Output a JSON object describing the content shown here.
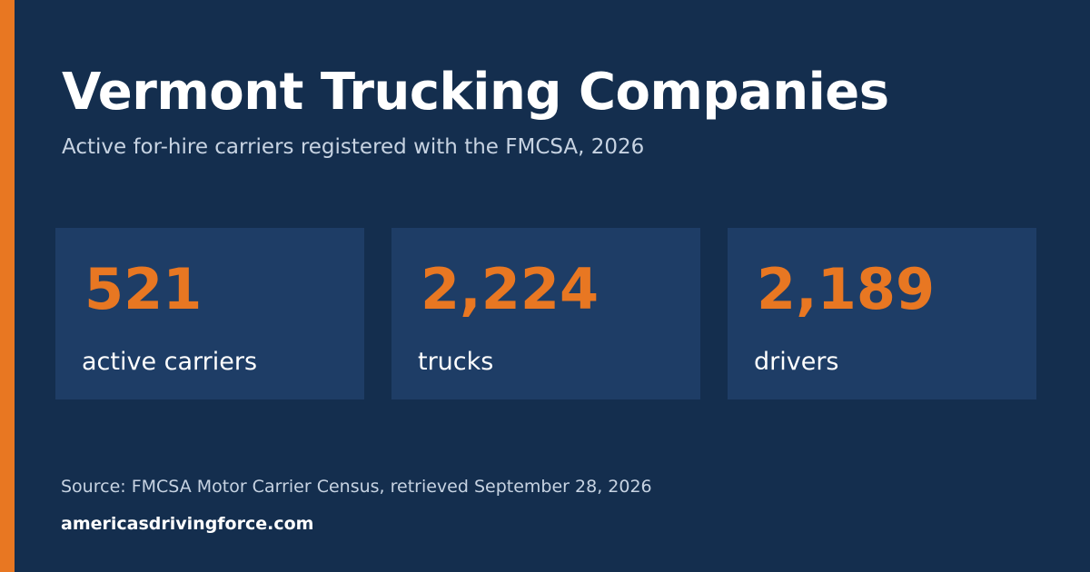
{
  "header": {
    "title": "Vermont Trucking Companies",
    "subtitle": "Active for-hire carriers registered with the FMCSA, 2026"
  },
  "stats": [
    {
      "value": "521",
      "label": "active carriers"
    },
    {
      "value": "2,224",
      "label": "trucks"
    },
    {
      "value": "2,189",
      "label": "drivers"
    }
  ],
  "footer": {
    "source": "Source: FMCSA Motor Carrier Census, retrieved September 28, 2026",
    "site": "americasdrivingforce.com"
  },
  "colors": {
    "background": "#142e4e",
    "accent": "#e87722",
    "stat_box": "#1e3d66",
    "text_primary": "#ffffff",
    "text_secondary": "#c7d3e2"
  }
}
